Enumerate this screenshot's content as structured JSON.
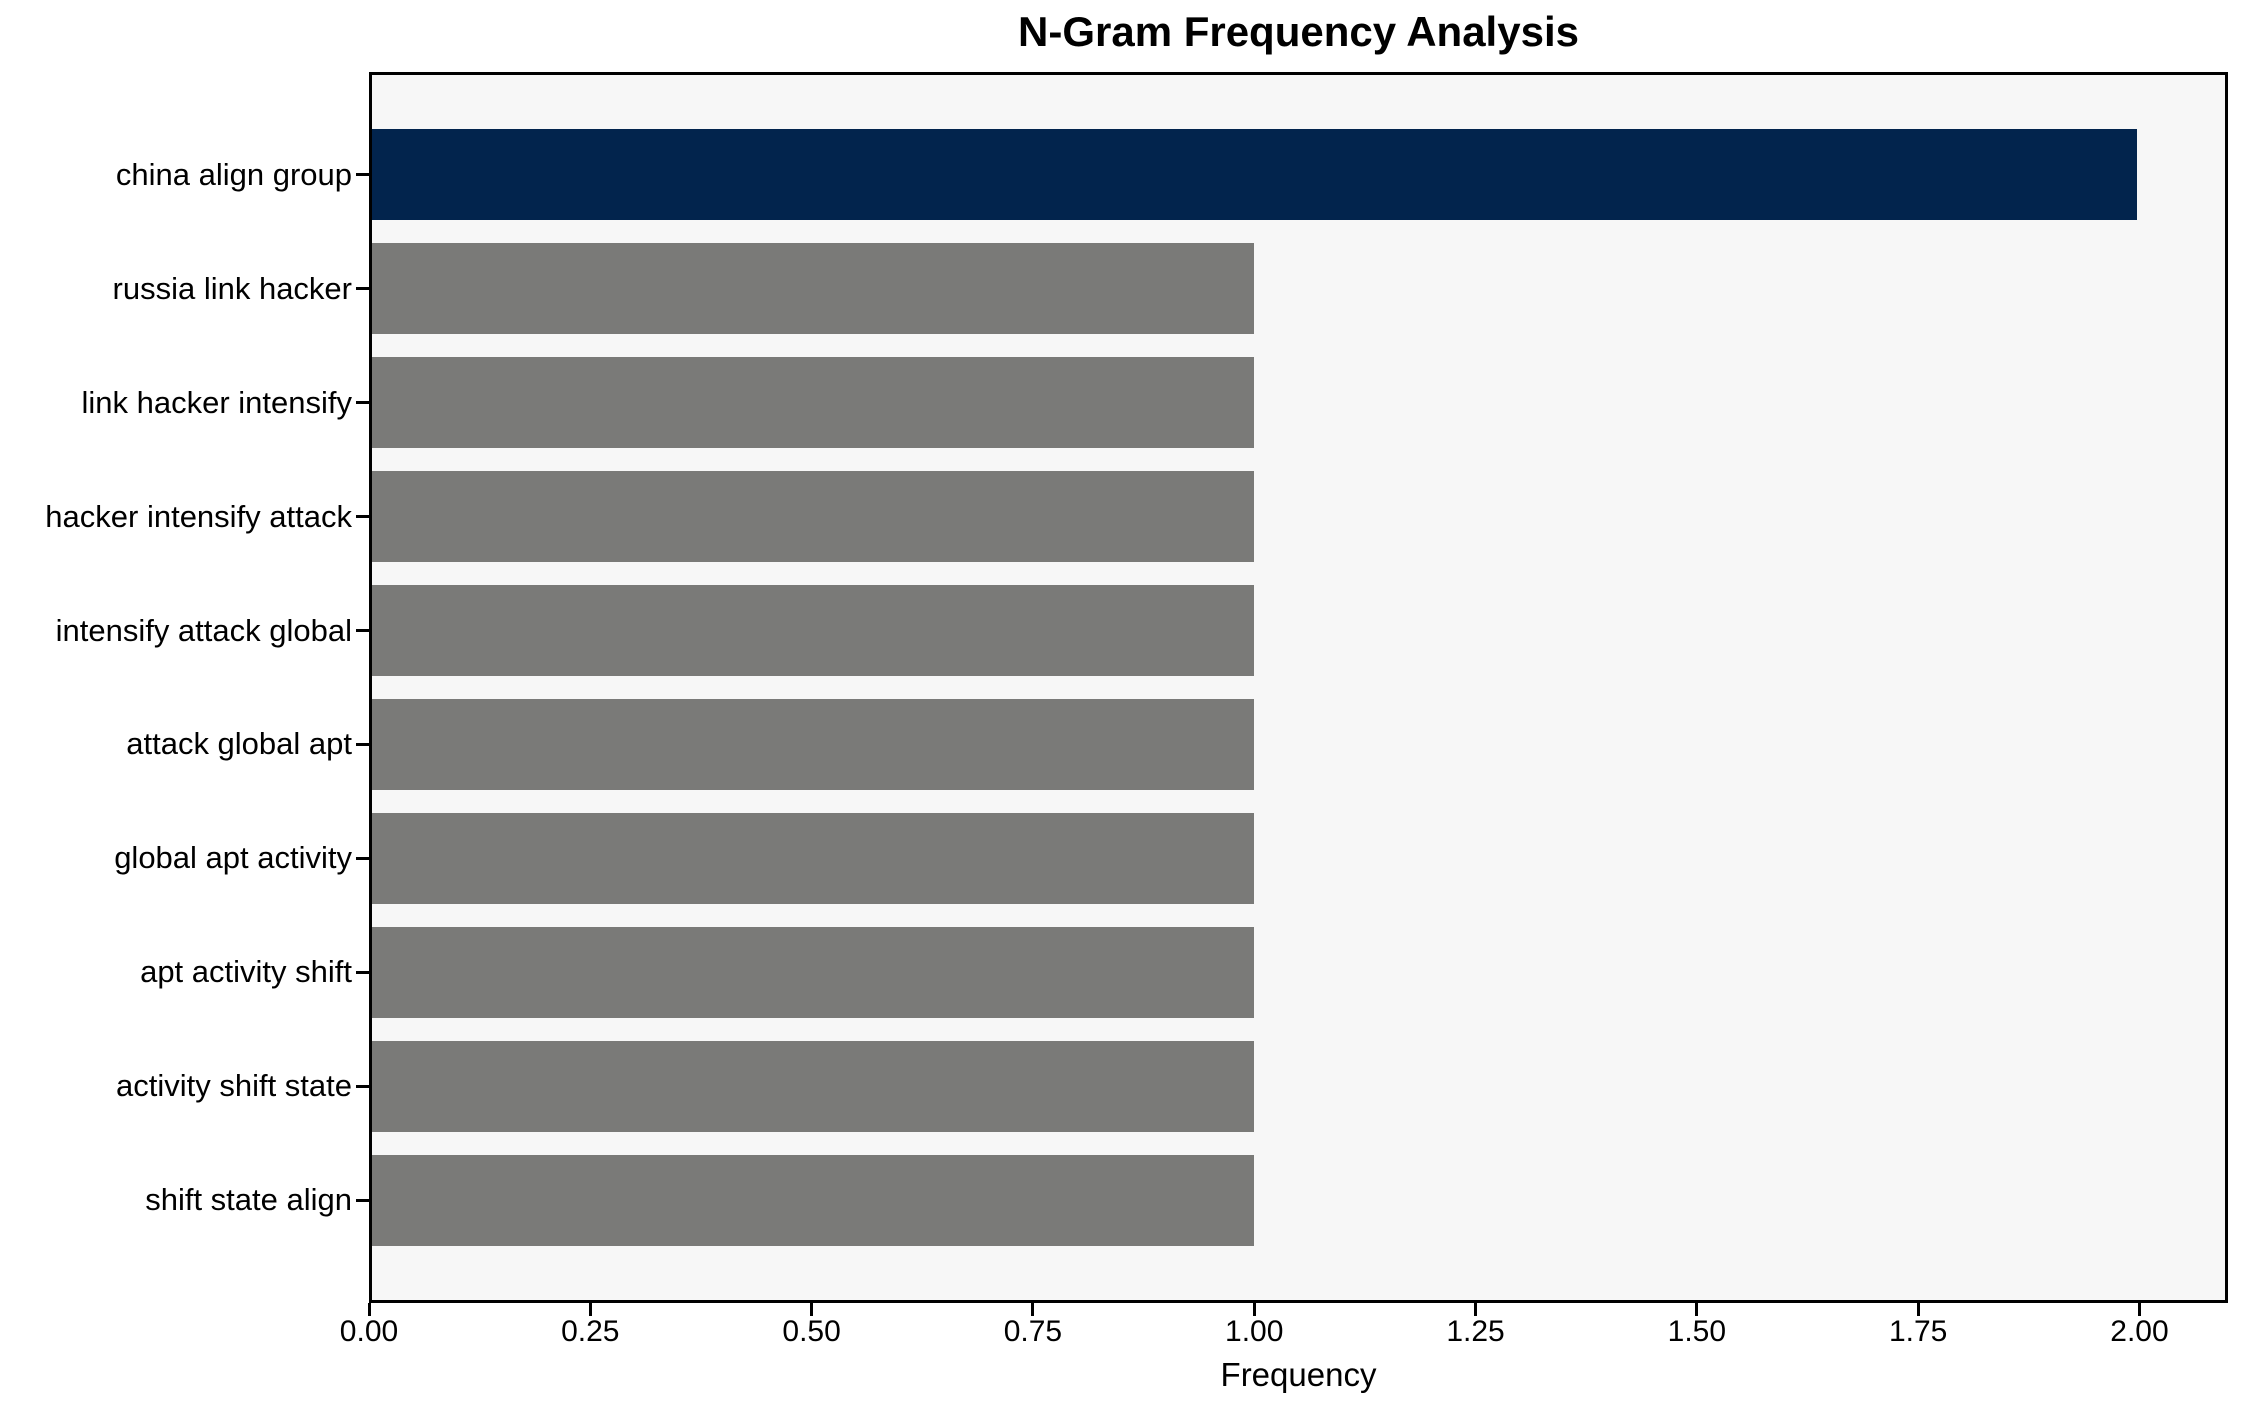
{
  "chart_data": {
    "type": "bar",
    "orientation": "horizontal",
    "title": "N-Gram Frequency Analysis",
    "xlabel": "Frequency",
    "ylabel": "",
    "categories": [
      "china align group",
      "russia link hacker",
      "link hacker intensify",
      "hacker intensify attack",
      "intensify attack global",
      "attack global apt",
      "global apt activity",
      "apt activity shift",
      "activity shift state",
      "shift state align"
    ],
    "values": [
      2.0,
      1.0,
      1.0,
      1.0,
      1.0,
      1.0,
      1.0,
      1.0,
      1.0,
      1.0
    ],
    "bar_colors": [
      "#02244d",
      "#7a7a78",
      "#7a7a78",
      "#7a7a78",
      "#7a7a78",
      "#7a7a78",
      "#7a7a78",
      "#7a7a78",
      "#7a7a78",
      "#7a7a78"
    ],
    "xlim": [
      0,
      2.1
    ],
    "xtick_values": [
      0,
      0.25,
      0.5,
      0.75,
      1.0,
      1.25,
      1.5,
      1.75,
      2.0
    ],
    "xtick_labels": [
      "0.00",
      "0.25",
      "0.50",
      "0.75",
      "1.00",
      "1.25",
      "1.50",
      "1.75",
      "2.00"
    ],
    "grid": false,
    "legend": null,
    "colors": {
      "highlight_bar": "#02244d",
      "default_bar": "#7a7a78",
      "plot_background": "#f7f7f7",
      "figure_background": "#ffffff",
      "spine": "#000000",
      "text": "#000000"
    }
  }
}
